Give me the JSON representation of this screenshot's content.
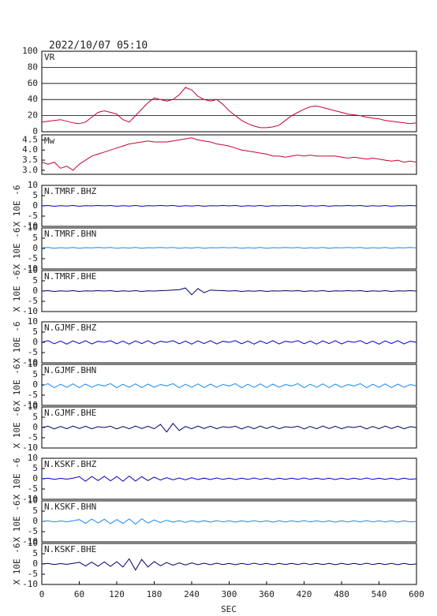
{
  "chart_data": {
    "type": "line",
    "title": "2022/10/07 05:10",
    "xlabel": "SEC",
    "xlim": [
      0,
      600
    ],
    "xticks": [
      0,
      60,
      120,
      180,
      240,
      300,
      360,
      420,
      480,
      540,
      600
    ],
    "x": [
      0,
      10,
      20,
      30,
      40,
      50,
      60,
      70,
      80,
      90,
      100,
      110,
      120,
      130,
      140,
      150,
      160,
      170,
      180,
      190,
      200,
      210,
      220,
      230,
      240,
      250,
      260,
      270,
      280,
      290,
      300,
      310,
      320,
      330,
      340,
      350,
      360,
      370,
      380,
      390,
      400,
      410,
      420,
      430,
      440,
      450,
      460,
      470,
      480,
      490,
      500,
      510,
      520,
      530,
      540,
      550,
      560,
      570,
      580,
      590,
      600
    ],
    "panels": [
      {
        "ylim": [
          0,
          100
        ],
        "yticks": [
          0,
          20,
          40,
          60,
          80,
          100
        ],
        "grid": true,
        "series": [
          {
            "name": "VR",
            "color": "#cc0033",
            "values": [
              12,
              13,
              14,
              15,
              13,
              11,
              10,
              12,
              18,
              24,
              26,
              24,
              22,
              15,
              12,
              20,
              28,
              36,
              42,
              40,
              38,
              40,
              46,
              55,
              52,
              44,
              40,
              38,
              40,
              34,
              26,
              20,
              14,
              10,
              7,
              5,
              5,
              6,
              8,
              14,
              20,
              24,
              28,
              31,
              32,
              30,
              28,
              26,
              24,
              22,
              21,
              20,
              18,
              17,
              16,
              14,
              13,
              12,
              11,
              10,
              11
            ]
          }
        ]
      },
      {
        "ylim": [
          2.8,
          4.75
        ],
        "yticks": [
          {
            "value": 3,
            "label": "3.0"
          },
          3.5,
          {
            "value": 4,
            "label": "4.0"
          },
          4.5
        ],
        "grid": false,
        "series": [
          {
            "name": "Mw",
            "color": "#cc0033",
            "values": [
              3.4,
              3.3,
              3.4,
              3.1,
              3.2,
              3.0,
              3.3,
              3.5,
              3.7,
              3.8,
              3.9,
              4.0,
              4.1,
              4.2,
              4.3,
              4.35,
              4.4,
              4.45,
              4.4,
              4.4,
              4.4,
              4.45,
              4.5,
              4.55,
              4.6,
              4.5,
              4.45,
              4.4,
              4.3,
              4.25,
              4.2,
              4.1,
              4.0,
              3.95,
              3.9,
              3.85,
              3.8,
              3.7,
              3.7,
              3.65,
              3.7,
              3.75,
              3.7,
              3.75,
              3.7,
              3.7,
              3.7,
              3.7,
              3.65,
              3.6,
              3.65,
              3.6,
              3.55,
              3.6,
              3.55,
              3.5,
              3.45,
              3.5,
              3.4,
              3.45,
              3.4
            ]
          }
        ]
      },
      {
        "ylabel": "X 10E -6",
        "ylim": [
          -10,
          10
        ],
        "yticks": [
          -10,
          -5,
          0,
          5,
          10
        ],
        "grid": false,
        "series": [
          {
            "name": "N.TMRF.BHZ",
            "color": "#0000cc",
            "values": [
              0,
              0.2,
              -0.2,
              0.1,
              -0.1,
              0.2,
              -0.2,
              0.1,
              0,
              0.2,
              0,
              0.2,
              -0.2,
              0.1,
              -0.1,
              0.2,
              -0.2,
              0.1,
              0,
              0.2,
              0,
              0.2,
              -0.2,
              0.1,
              -0.1,
              0.2,
              -0.2,
              0.1,
              0,
              0.2,
              0,
              0.2,
              -0.2,
              0.1,
              -0.1,
              0.2,
              -0.2,
              0.1,
              0,
              0.2,
              0,
              0.2,
              -0.2,
              0.1,
              -0.1,
              0.2,
              -0.2,
              0.1,
              0,
              0.2,
              0,
              0.2,
              -0.2,
              0.1,
              -0.1,
              0.2,
              -0.2,
              0.1,
              0,
              0.2,
              0
            ]
          }
        ]
      },
      {
        "ylabel": "X 10E -6",
        "ylim": [
          -10,
          10
        ],
        "yticks": [
          -10,
          -5,
          0,
          5,
          10
        ],
        "grid": false,
        "series": [
          {
            "name": "N.TMRF.BHN",
            "color": "#1e88e5",
            "values": [
              0.3,
              0.5,
              0.1,
              0.4,
              0.2,
              0.5,
              0.1,
              0.4,
              0.3,
              0.5,
              0.3,
              0.5,
              0.1,
              0.4,
              0.2,
              0.5,
              0.1,
              0.4,
              0.3,
              0.5,
              0.3,
              0.5,
              0.1,
              0.4,
              0.2,
              0.5,
              0.1,
              0.4,
              0.3,
              0.5,
              0.3,
              0.5,
              0.1,
              0.4,
              0.2,
              0.5,
              0.1,
              0.4,
              0.3,
              0.5,
              0.3,
              0.5,
              0.1,
              0.4,
              0.2,
              0.5,
              0.1,
              0.4,
              0.3,
              0.5,
              0.3,
              0.5,
              0.1,
              0.4,
              0.2,
              0.5,
              0.1,
              0.4,
              0.3,
              0.5,
              0.3
            ]
          }
        ]
      },
      {
        "ylabel": "X 10E -6",
        "ylim": [
          -10,
          10
        ],
        "yticks": [
          -10,
          -5,
          0,
          5,
          10
        ],
        "grid": false,
        "series": [
          {
            "name": "N.TMRF.BHE",
            "color": "#000066",
            "values": [
              0,
              0.2,
              -0.2,
              0.1,
              -0.1,
              0.2,
              -0.2,
              0.1,
              0,
              0.2,
              0,
              0.2,
              -0.2,
              0.1,
              -0.1,
              0.2,
              -0.2,
              0.1,
              0,
              0.2,
              0.3,
              0.5,
              0.6,
              1.5,
              -1.8,
              1.2,
              -0.8,
              0.5,
              0.3,
              0.2,
              0,
              0.2,
              -0.2,
              0.1,
              -0.1,
              0.2,
              -0.2,
              0.1,
              0,
              0.2,
              0,
              0.2,
              -0.2,
              0.1,
              -0.1,
              0.2,
              -0.2,
              0.1,
              0,
              0.2,
              0,
              0.2,
              -0.2,
              0.1,
              -0.1,
              0.2,
              -0.2,
              0.1,
              0,
              0.2,
              0
            ]
          }
        ]
      },
      {
        "ylabel": "X 10E -6",
        "ylim": [
          -10,
          10
        ],
        "yticks": [
          -10,
          -5,
          0,
          5,
          10
        ],
        "grid": false,
        "series": [
          {
            "name": "N.GJMF.BHZ",
            "color": "#0000cc",
            "values": [
              0,
              0.8,
              -0.7,
              0.6,
              -0.9,
              0.7,
              -0.6,
              0.8,
              -0.8,
              0.5,
              0,
              0.8,
              -0.7,
              0.6,
              -0.9,
              0.7,
              -0.6,
              0.8,
              -0.8,
              0.5,
              0,
              0.8,
              -0.7,
              0.6,
              -0.9,
              0.7,
              -0.6,
              0.8,
              -0.8,
              0.5,
              0,
              0.8,
              -0.7,
              0.6,
              -0.9,
              0.7,
              -0.6,
              0.8,
              -0.8,
              0.5,
              0,
              0.8,
              -0.7,
              0.6,
              -0.9,
              0.7,
              -0.6,
              0.8,
              -0.8,
              0.5,
              0,
              0.8,
              -0.7,
              0.6,
              -0.9,
              0.7,
              -0.6,
              0.8,
              -0.8,
              0.5,
              0
            ]
          }
        ]
      },
      {
        "ylabel": "X 10E -6",
        "ylim": [
          -10,
          10
        ],
        "yticks": [
          -10,
          -5,
          0,
          5,
          10
        ],
        "grid": false,
        "series": [
          {
            "name": "N.GJMF.BHN",
            "color": "#1e88e5",
            "values": [
              -0.5,
              0.6,
              -1.4,
              0.3,
              -1.2,
              0.5,
              -1.3,
              0.4,
              -1.1,
              0.2,
              -0.5,
              0.6,
              -1.4,
              0.3,
              -1.2,
              0.5,
              -1.3,
              0.4,
              -1.1,
              0.2,
              -0.5,
              0.6,
              -1.4,
              0.3,
              -1.2,
              0.5,
              -1.3,
              0.4,
              -1.1,
              0.2,
              -0.5,
              0.6,
              -1.4,
              0.3,
              -1.2,
              0.5,
              -1.3,
              0.4,
              -1.1,
              0.2,
              -0.5,
              0.6,
              -1.4,
              0.3,
              -1.2,
              0.5,
              -1.3,
              0.4,
              -1.1,
              0.2,
              -0.5,
              0.6,
              -1.4,
              0.3,
              -1.2,
              0.5,
              -1.3,
              0.4,
              -1.1,
              0.2,
              -0.5
            ]
          }
        ]
      },
      {
        "ylabel": "X 10E -6",
        "ylim": [
          -10,
          10
        ],
        "yticks": [
          -10,
          -5,
          0,
          5,
          10
        ],
        "grid": false,
        "series": [
          {
            "name": "N.GJMF.BHE",
            "color": "#000066",
            "values": [
              0,
              0.6,
              -0.7,
              0.5,
              -0.6,
              0.7,
              -0.5,
              0.6,
              -0.6,
              0.4,
              0,
              0.6,
              -0.7,
              0.5,
              -0.6,
              0.7,
              -0.5,
              0.6,
              -0.6,
              1.5,
              -2.2,
              2.0,
              -1.5,
              0.5,
              -0.6,
              0.7,
              -0.5,
              0.6,
              -0.6,
              0.4,
              0,
              0.6,
              -0.7,
              0.5,
              -0.6,
              0.7,
              -0.5,
              0.6,
              -0.6,
              0.4,
              0,
              0.6,
              -0.7,
              0.5,
              -0.6,
              0.7,
              -0.5,
              0.6,
              -0.6,
              0.4,
              0,
              0.6,
              -0.7,
              0.5,
              -0.6,
              0.7,
              -0.5,
              0.6,
              -0.6,
              0.4,
              0
            ]
          }
        ]
      },
      {
        "ylabel": "X 10E -6",
        "ylim": [
          -10,
          10
        ],
        "yticks": [
          -10,
          -5,
          0,
          5,
          10
        ],
        "grid": false,
        "series": [
          {
            "name": "N.KSKF.BHZ",
            "color": "#0000cc",
            "values": [
              0,
              0.3,
              -0.3,
              0.2,
              -0.2,
              0.3,
              1.0,
              -1.2,
              1.1,
              -0.9,
              1.2,
              -1.0,
              1.1,
              -1.2,
              1.3,
              -1.1,
              1.0,
              -0.9,
              0.8,
              -0.6,
              0.5,
              -0.5,
              0.4,
              -0.5,
              0.5,
              -0.4,
              0.3,
              -0.4,
              0.4,
              -0.3,
              0.3,
              -0.4,
              0.3,
              -0.3,
              0.4,
              -0.3,
              0.3,
              -0.4,
              0.3,
              -0.3,
              0.3,
              -0.3,
              0.4,
              -0.3,
              0.3,
              -0.3,
              0.3,
              -0.4,
              0.3,
              -0.3,
              0.3,
              -0.3,
              0.4,
              -0.3,
              0.3,
              -0.3,
              0.3,
              -0.4,
              0.3,
              -0.3,
              0
            ]
          }
        ]
      },
      {
        "ylabel": "X 10E -6",
        "ylim": [
          -10,
          10
        ],
        "yticks": [
          -10,
          -5,
          0,
          5,
          10
        ],
        "grid": false,
        "series": [
          {
            "name": "N.KSKF.BHN",
            "color": "#1e88e5",
            "values": [
              0,
              0.3,
              -0.3,
              0.2,
              -0.2,
              0.3,
              0.9,
              -1.0,
              1.1,
              -0.8,
              1.0,
              -1.1,
              0.9,
              -1.0,
              1.2,
              -1.4,
              1.3,
              -0.9,
              0.7,
              -0.6,
              0.5,
              -0.4,
              0.4,
              -0.5,
              0.4,
              -0.4,
              0.3,
              -0.4,
              0.4,
              -0.3,
              0.3,
              -0.4,
              0.3,
              -0.3,
              0.4,
              -0.3,
              0.3,
              -0.4,
              0.3,
              -0.3,
              0.3,
              -0.3,
              0.4,
              -0.3,
              0.3,
              -0.3,
              0.3,
              -0.4,
              0.3,
              -0.3,
              0.3,
              -0.3,
              0.4,
              -0.3,
              0.3,
              -0.3,
              0.3,
              -0.4,
              0.3,
              -0.3,
              0
            ]
          }
        ]
      },
      {
        "ylabel": "X 10E -6",
        "ylim": [
          -10,
          10
        ],
        "yticks": [
          -10,
          -5,
          0,
          5,
          10
        ],
        "grid": false,
        "series": [
          {
            "name": "N.KSKF.BHE",
            "color": "#000066",
            "values": [
              0,
              0.3,
              -0.3,
              0.2,
              -0.2,
              0.3,
              0.8,
              -1.0,
              0.9,
              -1.1,
              1.0,
              -1.2,
              1.1,
              -1.5,
              2.5,
              -3.0,
              2.2,
              -1.5,
              1.2,
              -0.9,
              0.7,
              -0.6,
              0.5,
              -0.5,
              0.5,
              -0.4,
              0.4,
              -0.4,
              0.4,
              -0.3,
              0.3,
              -0.4,
              0.3,
              -0.3,
              0.4,
              -0.3,
              0.3,
              -0.4,
              0.3,
              -0.3,
              0.3,
              -0.3,
              0.4,
              -0.3,
              0.3,
              -0.3,
              0.3,
              -0.4,
              0.3,
              -0.3,
              0.3,
              -0.3,
              0.4,
              -0.3,
              0.3,
              -0.3,
              0.3,
              -0.4,
              0.3,
              -0.3,
              0
            ]
          }
        ]
      }
    ]
  }
}
